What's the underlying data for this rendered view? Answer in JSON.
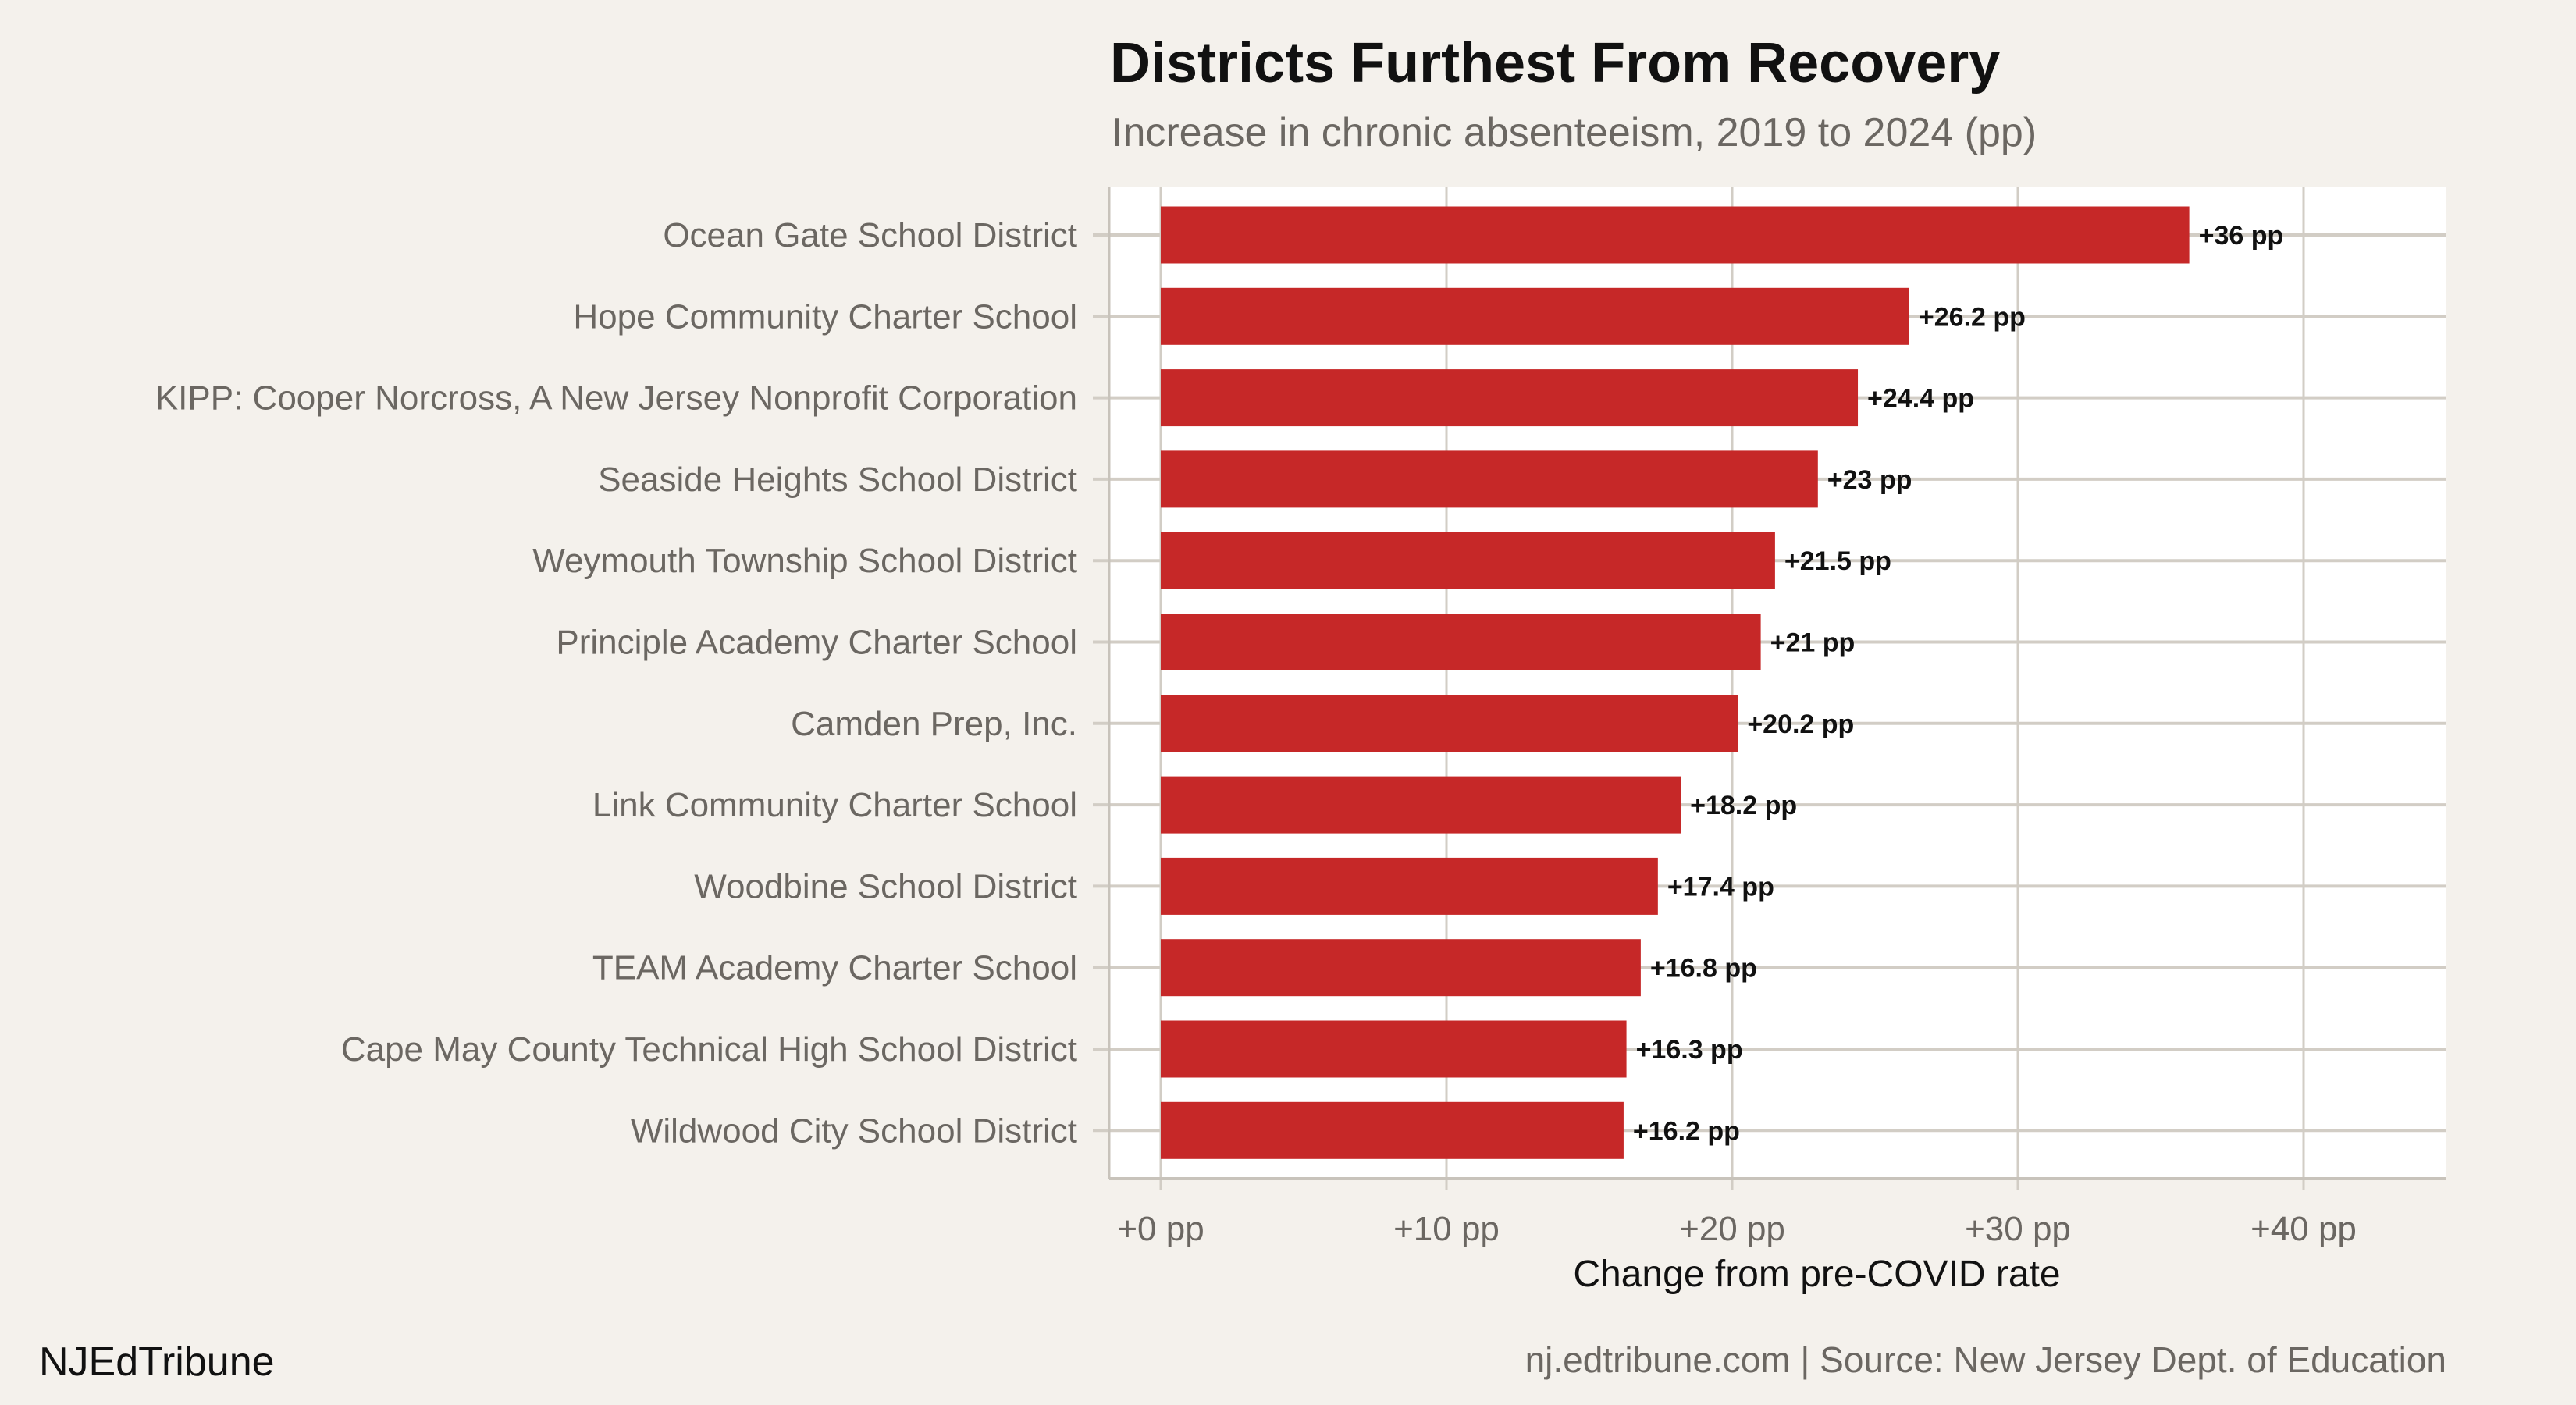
{
  "chart_data": {
    "type": "bar",
    "orientation": "horizontal",
    "title": "Districts Furthest From Recovery",
    "subtitle": "Increase in chronic absenteeism, 2019 to 2024 (pp)",
    "xlabel": "Change from pre-COVID rate",
    "ylabel": "",
    "xlim": [
      -1.8,
      45
    ],
    "xticks": [
      0,
      10,
      20,
      30,
      40
    ],
    "xtick_labels": [
      "+0 pp",
      "+10 pp",
      "+20 pp",
      "+30 pp",
      "+40 pp"
    ],
    "grid": true,
    "categories": [
      "Ocean Gate School District",
      "Hope Community Charter School",
      "KIPP: Cooper Norcross, A New Jersey Nonprofit Corporation",
      "Seaside Heights School District",
      "Weymouth Township School District",
      "Principle Academy Charter School",
      "Camden Prep, Inc.",
      "Link Community Charter School",
      "Woodbine School District",
      "TEAM Academy Charter School",
      "Cape May County Technical High School District",
      "Wildwood City School District"
    ],
    "values": [
      36,
      26.2,
      24.4,
      23,
      21.5,
      21,
      20.2,
      18.2,
      17.4,
      16.8,
      16.3,
      16.2
    ],
    "data_labels": [
      "+36 pp",
      "+26.2 pp",
      "+24.4 pp",
      "+23 pp",
      "+21.5 pp",
      "+21 pp",
      "+20.2 pp",
      "+18.2 pp",
      "+17.4 pp",
      "+16.8 pp",
      "+16.3 pp",
      "+16.2 pp"
    ],
    "colors": {
      "bar": "#c62828",
      "background": "#f4f1ec",
      "panel": "#ffffff",
      "grid": "#d2cdc5"
    }
  },
  "footer": {
    "brand": "NJEdTribune",
    "source": "nj.edtribune.com | Source: New Jersey Dept. of Education"
  }
}
